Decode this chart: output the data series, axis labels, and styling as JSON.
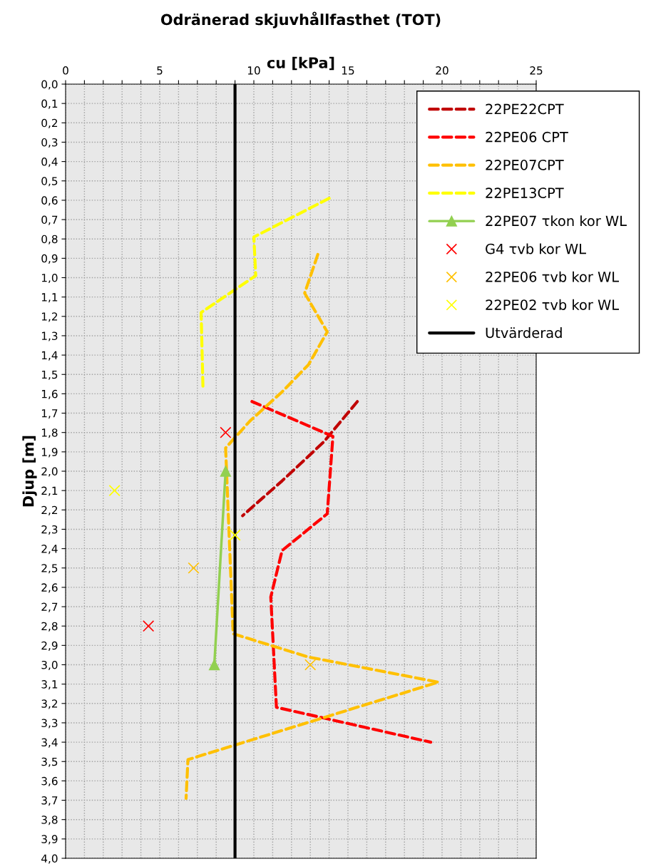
{
  "chart_data": {
    "type": "line",
    "title": "Odränerad skjuvhållfasthet (TOT)",
    "xlabel": "cu [kPa]",
    "ylabel": "Djup [m]",
    "xlim": [
      0,
      25
    ],
    "xticks": [
      0,
      {
        "value": 1,
        "label": null
      },
      {
        "value": 2,
        "label": null
      },
      {
        "value": 3,
        "label": null
      },
      {
        "value": 4,
        "label": null
      },
      5,
      {
        "value": 6,
        "label": null
      },
      {
        "value": 7,
        "label": null
      },
      {
        "value": 8,
        "label": null
      },
      {
        "value": 9,
        "label": null
      },
      10,
      {
        "value": 11,
        "label": null
      },
      {
        "value": 12,
        "label": null
      },
      {
        "value": 13,
        "label": null
      },
      {
        "value": 14,
        "label": null
      },
      15,
      {
        "value": 16,
        "label": null
      },
      {
        "value": 17,
        "label": null
      },
      {
        "value": 18,
        "label": null
      },
      {
        "value": 19,
        "label": null
      },
      20,
      {
        "value": 21,
        "label": null
      },
      {
        "value": 22,
        "label": null
      },
      {
        "value": 23,
        "label": null
      },
      {
        "value": 24,
        "label": null
      },
      25
    ],
    "ylim": [
      4.0,
      0.0
    ],
    "yticks": [
      {
        "value": 0.0,
        "label": "0,0"
      },
      {
        "value": 0.1,
        "label": "0,1"
      },
      {
        "value": 0.2,
        "label": "0,2"
      },
      {
        "value": 0.3,
        "label": "0,3"
      },
      {
        "value": 0.4,
        "label": "0,4"
      },
      {
        "value": 0.5,
        "label": "0,5"
      },
      {
        "value": 0.6,
        "label": "0,6"
      },
      {
        "value": 0.7,
        "label": "0,7"
      },
      {
        "value": 0.8,
        "label": "0,8"
      },
      {
        "value": 0.9,
        "label": "0,9"
      },
      {
        "value": 1.0,
        "label": "1,0"
      },
      {
        "value": 1.1,
        "label": "1,1"
      },
      {
        "value": 1.2,
        "label": "1,2"
      },
      {
        "value": 1.3,
        "label": "1,3"
      },
      {
        "value": 1.4,
        "label": "1,4"
      },
      {
        "value": 1.5,
        "label": "1,5"
      },
      {
        "value": 1.6,
        "label": "1,6"
      },
      {
        "value": 1.7,
        "label": "1,7"
      },
      {
        "value": 1.8,
        "label": "1,8"
      },
      {
        "value": 1.9,
        "label": "1,9"
      },
      {
        "value": 2.0,
        "label": "2,0"
      },
      {
        "value": 2.1,
        "label": "2,1"
      },
      {
        "value": 2.2,
        "label": "2,2"
      },
      {
        "value": 2.3,
        "label": "2,3"
      },
      {
        "value": 2.4,
        "label": "2,4"
      },
      {
        "value": 2.5,
        "label": "2,5"
      },
      {
        "value": 2.6,
        "label": "2,6"
      },
      {
        "value": 2.7,
        "label": "2,7"
      },
      {
        "value": 2.8,
        "label": "2,8"
      },
      {
        "value": 2.9,
        "label": "2,9"
      },
      {
        "value": 3.0,
        "label": "3,0"
      },
      {
        "value": 3.1,
        "label": "3,1"
      },
      {
        "value": 3.2,
        "label": "3,2"
      },
      {
        "value": 3.3,
        "label": "3,3"
      },
      {
        "value": 3.4,
        "label": "3,4"
      },
      {
        "value": 3.5,
        "label": "3,5"
      },
      {
        "value": 3.6,
        "label": "3,6"
      },
      {
        "value": 3.7,
        "label": "3,7"
      },
      {
        "value": 3.8,
        "label": "3,8"
      },
      {
        "value": 3.9,
        "label": "3,9"
      },
      {
        "value": 4.0,
        "label": "4,0"
      }
    ],
    "grid": true,
    "legend": "top right",
    "series": [
      {
        "name": "22PE22CPT",
        "color": "#c00000",
        "line_style": "dashed",
        "marker": "none",
        "x": [
          15.5,
          13.7,
          11.5,
          9.4
        ],
        "values": [
          1.64,
          1.85,
          2.05,
          2.23
        ]
      },
      {
        "name": "22PE06 CPT",
        "color": "#ff0000",
        "line_style": "dashed",
        "marker": "none",
        "x": [
          9.9,
          14.2,
          13.9,
          11.5,
          10.9,
          11.2,
          19.4
        ],
        "values": [
          1.64,
          1.82,
          2.22,
          2.41,
          2.65,
          3.22,
          3.4
        ]
      },
      {
        "name": "22PE07CPT",
        "color": "#ffc000",
        "line_style": "dashed",
        "marker": "none",
        "x": [
          13.4,
          12.7,
          13.9,
          12.9,
          11.5,
          9.8,
          8.5,
          8.9,
          12.9,
          19.8,
          6.5,
          6.4
        ],
        "values": [
          0.88,
          1.08,
          1.28,
          1.45,
          1.59,
          1.74,
          1.88,
          2.84,
          2.96,
          3.09,
          3.49,
          3.69
        ]
      },
      {
        "name": "22PE13CPT",
        "color": "#ffff00",
        "line_style": "dashed",
        "marker": "none",
        "x": [
          14.0,
          10.0,
          10.1,
          7.2,
          7.3
        ],
        "values": [
          0.59,
          0.79,
          0.99,
          1.18,
          1.58
        ]
      },
      {
        "name": "22PE07 τkon kor WL",
        "color": "#92d050",
        "line_style": "solid",
        "marker": "triangle",
        "x": [
          8.5,
          7.9
        ],
        "values": [
          2.0,
          3.0
        ]
      },
      {
        "name": "G4 τvb kor WL",
        "type": "scatter",
        "color": "#ff0000",
        "marker": "cross",
        "x": [
          8.5,
          4.4
        ],
        "values": [
          1.8,
          2.8
        ]
      },
      {
        "name": "22PE06 τvb kor WL",
        "type": "scatter",
        "color": "#ffc000",
        "marker": "cross",
        "x": [
          6.8,
          13.0
        ],
        "values": [
          2.5,
          3.0
        ]
      },
      {
        "name": "22PE02 τvb kor WL",
        "type": "scatter",
        "color": "#ffff00",
        "marker": "cross",
        "x": [
          2.6,
          9.0
        ],
        "values": [
          2.1,
          2.33
        ]
      },
      {
        "name": "Utvärderad",
        "color": "#000000",
        "line_style": "solid",
        "marker": "none",
        "x": [
          9,
          9
        ],
        "values": [
          0.0,
          4.0
        ]
      }
    ]
  }
}
